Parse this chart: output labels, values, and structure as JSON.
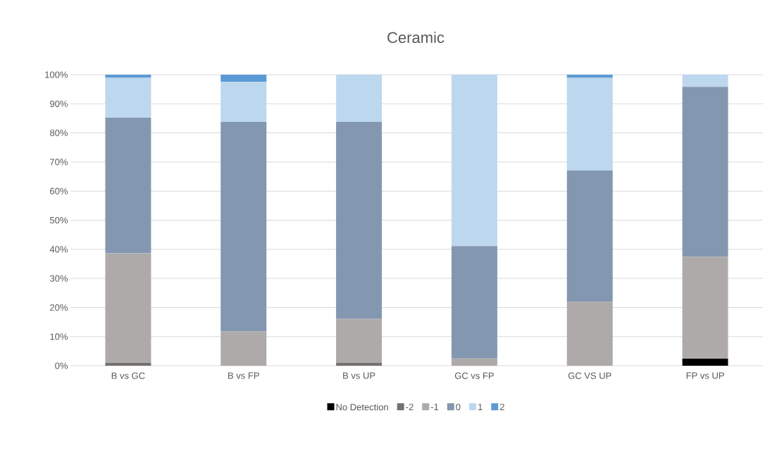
{
  "chart_data": {
    "type": "bar",
    "title": "Ceramic",
    "stacked": true,
    "categories": [
      "B vs GC",
      "B vs FP",
      "B vs UP",
      "GC vs FP",
      "GC VS UP",
      "FP vs UP"
    ],
    "series": [
      {
        "name": "No Detection",
        "color": "#000000",
        "values": [
          0,
          0,
          0,
          0,
          0,
          2.4
        ]
      },
      {
        "name": "-2",
        "color": "#767171",
        "values": [
          1.0,
          0,
          1.0,
          0,
          0,
          0
        ]
      },
      {
        "name": "-1",
        "color": "#aeaaaa",
        "values": [
          37.6,
          11.8,
          15.1,
          2.5,
          21.9,
          35.0
        ]
      },
      {
        "name": "0",
        "color": "#8497b0",
        "values": [
          46.6,
          72.0,
          67.7,
          38.6,
          45.2,
          58.4
        ]
      },
      {
        "name": "1",
        "color": "#bdd7ee",
        "values": [
          13.7,
          13.7,
          16.2,
          58.9,
          31.8,
          4.2
        ]
      },
      {
        "name": "2",
        "color": "#5b9bd5",
        "values": [
          1.1,
          2.5,
          0,
          0,
          1.1,
          0
        ]
      }
    ],
    "ylim": [
      0,
      100
    ],
    "yticks": [
      {
        "value": 0,
        "label": "0%"
      },
      {
        "value": 10,
        "label": "10%"
      },
      {
        "value": 20,
        "label": "20%"
      },
      {
        "value": 30,
        "label": "30%"
      },
      {
        "value": 40,
        "label": "40%"
      },
      {
        "value": 50,
        "label": "50%"
      },
      {
        "value": 60,
        "label": "60%"
      },
      {
        "value": 70,
        "label": "70%"
      },
      {
        "value": 80,
        "label": "80%"
      },
      {
        "value": 90,
        "label": "90%"
      },
      {
        "value": 100,
        "label": "100%"
      }
    ],
    "grid": "y",
    "legend": "bottom"
  }
}
